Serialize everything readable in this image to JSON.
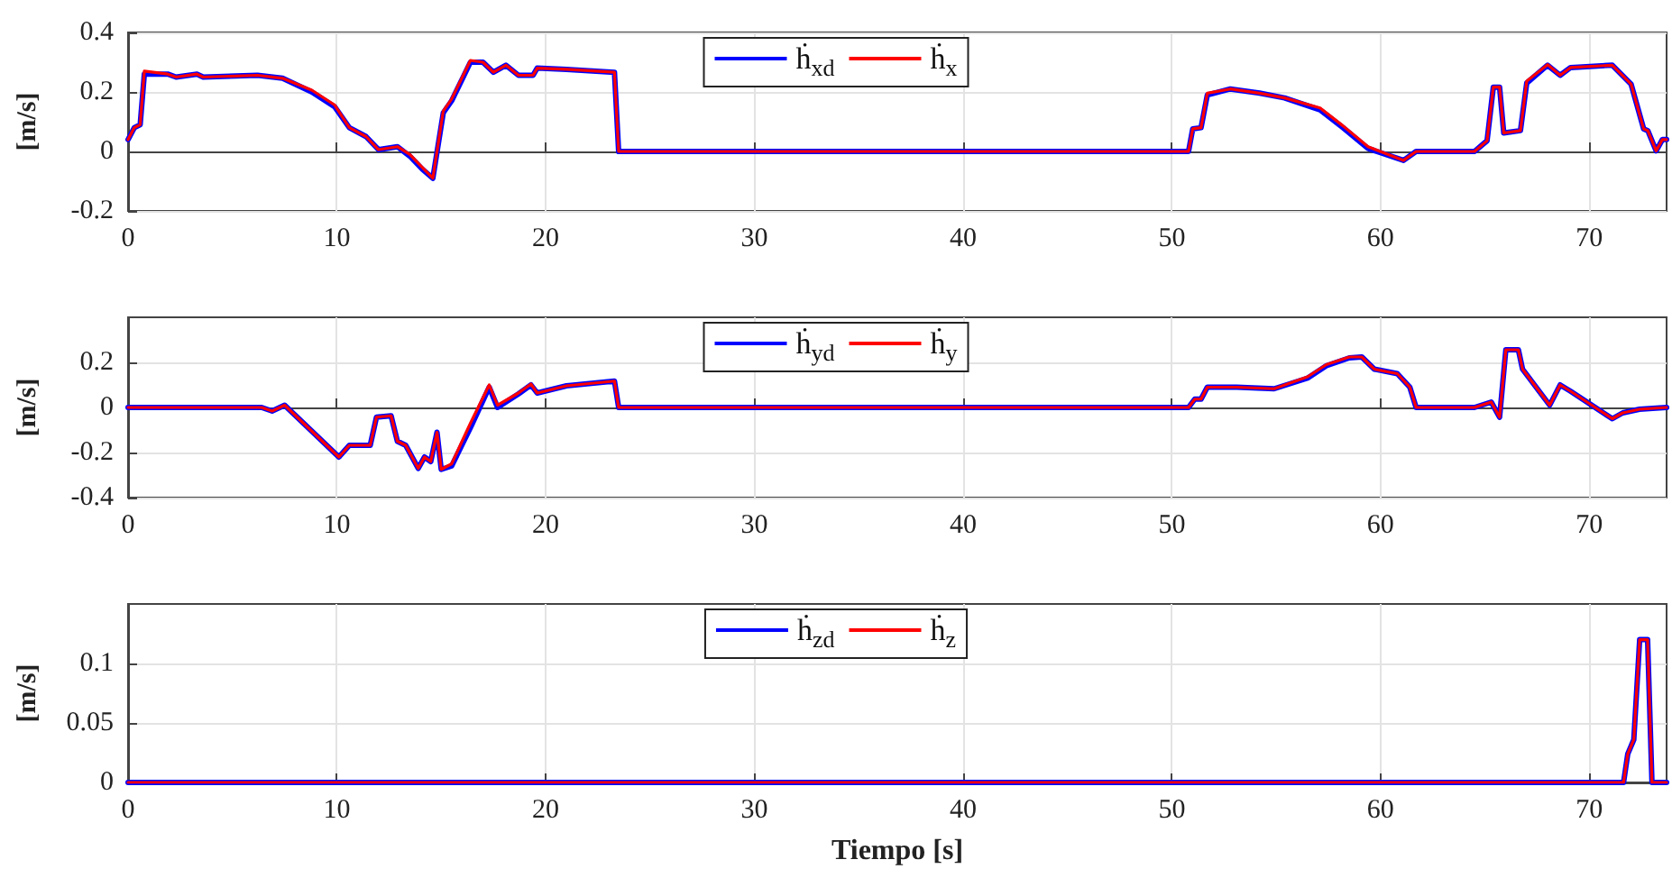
{
  "chart_data": [
    {
      "type": "line",
      "ylabel": "[m/s]",
      "xlim": [
        0,
        73.7
      ],
      "xticks": [
        0,
        10,
        20,
        30,
        40,
        50,
        60,
        70
      ],
      "ylim": [
        -0.2,
        0.4
      ],
      "yticks": [
        -0.2,
        0,
        0.2,
        0.4
      ],
      "grid": true,
      "legend": "top",
      "x": [
        0,
        0.3,
        0.58,
        0.78,
        1.9,
        2.3,
        3.3,
        3.6,
        6.2,
        7.4,
        8.8,
        9.9,
        10.6,
        11.4,
        12.0,
        12.9,
        13.5,
        14.1,
        14.6,
        15.1,
        15.5,
        16.4,
        17.0,
        17.5,
        18.1,
        18.7,
        19.4,
        19.6,
        21.0,
        23.3,
        23.5,
        50.8,
        51.0,
        51.4,
        51.7,
        52.8,
        54.2,
        55.4,
        57.1,
        58.2,
        59.4,
        61.1,
        61.7,
        64.5,
        65.1,
        65.4,
        65.7,
        65.9,
        66.7,
        67.0,
        68.0,
        68.6,
        69.1,
        71.1,
        72.0,
        72.6,
        72.8,
        73.2,
        73.5,
        73.7
      ],
      "series": [
        {
          "name": "ḣ$_{xd}$",
          "color": "#0000ff",
          "values": [
            0.04,
            0.08,
            0.09,
            0.26,
            0.26,
            0.25,
            0.26,
            0.25,
            0.256,
            0.246,
            0.2,
            0.15,
            0.08,
            0.05,
            0.006,
            0.016,
            -0.016,
            -0.06,
            -0.09,
            0.13,
            0.17,
            0.3,
            0.3,
            0.266,
            0.29,
            0.256,
            0.256,
            0.28,
            0.276,
            0.266,
            0,
            0,
            0.076,
            0.08,
            0.19,
            0.21,
            0.196,
            0.18,
            0.14,
            0.08,
            0.01,
            -0.03,
            0,
            0,
            0.036,
            0.216,
            0.216,
            0.062,
            0.07,
            0.23,
            0.29,
            0.256,
            0.282,
            0.29,
            0.226,
            0.076,
            0.07,
            0.002,
            0.04,
            0.04
          ]
        },
        {
          "name": "ḣ$_{x}$",
          "color": "#ff0000",
          "values": [
            0.04,
            0.08,
            0.09,
            0.27,
            0.26,
            0.25,
            0.26,
            0.25,
            0.256,
            0.246,
            0.206,
            0.156,
            0.08,
            0.05,
            0.006,
            0.016,
            -0.01,
            -0.054,
            -0.09,
            0.136,
            0.176,
            0.306,
            0.3,
            0.266,
            0.29,
            0.256,
            0.256,
            0.28,
            0.276,
            0.266,
            0,
            0,
            0.076,
            0.08,
            0.196,
            0.21,
            0.196,
            0.18,
            0.146,
            0.086,
            0.016,
            -0.03,
            0,
            0,
            0.036,
            0.216,
            0.216,
            0.062,
            0.07,
            0.236,
            0.292,
            0.256,
            0.282,
            0.29,
            0.226,
            0.076,
            0.07,
            0.002,
            0.04,
            0.04
          ]
        }
      ]
    },
    {
      "type": "line",
      "ylabel": "[m/s]",
      "xlim": [
        0,
        73.7
      ],
      "xticks": [
        0,
        10,
        20,
        30,
        40,
        50,
        60,
        70
      ],
      "ylim": [
        -0.4,
        0.4
      ],
      "yticks": [
        -0.4,
        -0.2,
        0,
        0.2
      ],
      "grid": true,
      "legend": "top",
      "x": [
        0,
        6.4,
        6.9,
        7.5,
        10.1,
        10.6,
        11.6,
        11.9,
        12.6,
        12.9,
        13.3,
        13.9,
        14.2,
        14.5,
        14.8,
        15.0,
        15.5,
        16.4,
        17.3,
        17.7,
        18.7,
        19.3,
        19.6,
        21.0,
        23.3,
        23.5,
        50.8,
        51.1,
        51.4,
        51.7,
        53.1,
        54.9,
        56.5,
        57.4,
        58.5,
        59.1,
        59.7,
        60.8,
        61.4,
        61.7,
        64.5,
        65.3,
        65.7,
        66.0,
        66.6,
        66.8,
        68.1,
        68.6,
        69.1,
        71.1,
        71.6,
        72.4,
        73.2,
        73.7
      ],
      "series": [
        {
          "name": "ḣ$_{yd}$",
          "color": "#0000ff",
          "values": [
            0,
            0,
            -0.016,
            0.01,
            -0.22,
            -0.168,
            -0.168,
            -0.043,
            -0.037,
            -0.15,
            -0.168,
            -0.27,
            -0.22,
            -0.24,
            -0.11,
            -0.275,
            -0.26,
            -0.09,
            0.09,
            0.0,
            0.06,
            0.1,
            0.064,
            0.096,
            0.117,
            0,
            0,
            0.037,
            0.037,
            0.09,
            0.09,
            0.083,
            0.13,
            0.185,
            0.22,
            0.224,
            0.17,
            0.15,
            0.09,
            0,
            0,
            0.024,
            -0.043,
            0.256,
            0.256,
            0.17,
            0.01,
            0.1,
            0.072,
            -0.05,
            -0.024,
            -0.008,
            -0.003,
            0
          ]
        },
        {
          "name": "ḣ$_{y}$",
          "color": "#ff0000",
          "values": [
            0,
            0,
            -0.016,
            0.01,
            -0.22,
            -0.168,
            -0.168,
            -0.043,
            -0.037,
            -0.15,
            -0.168,
            -0.27,
            -0.22,
            -0.24,
            -0.11,
            -0.275,
            -0.25,
            -0.07,
            0.1,
            0.01,
            0.064,
            0.104,
            0.064,
            0.096,
            0.117,
            0,
            0,
            0.037,
            0.037,
            0.09,
            0.09,
            0.083,
            0.136,
            0.19,
            0.224,
            0.224,
            0.17,
            0.15,
            0.09,
            0,
            0,
            0.024,
            -0.043,
            0.256,
            0.256,
            0.17,
            0.01,
            0.1,
            0.072,
            -0.05,
            -0.024,
            -0.008,
            -0.003,
            0
          ]
        }
      ]
    },
    {
      "type": "line",
      "ylabel": "[m/s]",
      "xlabel": "Tiempo [s]",
      "xlim": [
        0,
        73.7
      ],
      "xticks": [
        0,
        10,
        20,
        30,
        40,
        50,
        60,
        70
      ],
      "ylim": [
        0,
        0.15
      ],
      "yticks": [
        0,
        0.05,
        0.1
      ],
      "grid": true,
      "legend": "top",
      "x": [
        0,
        71.64,
        71.84,
        72.13,
        72.41,
        72.79,
        73.0,
        73.7
      ],
      "series": [
        {
          "name": "ḣ$_{zd}$",
          "color": "#0000ff",
          "values": [
            0,
            0,
            0.024,
            0.036,
            0.12,
            0.12,
            0,
            0
          ]
        },
        {
          "name": "ḣ$_{z}$",
          "color": "#ff0000",
          "values": [
            0,
            0,
            0.024,
            0.036,
            0.12,
            0.12,
            0,
            0
          ]
        }
      ]
    }
  ]
}
